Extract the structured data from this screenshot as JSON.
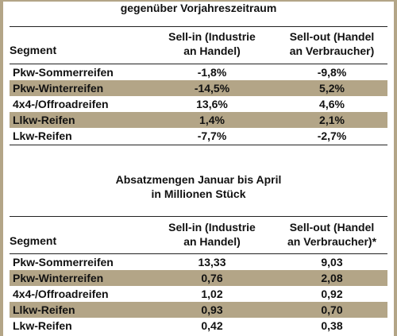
{
  "section1": {
    "title": "gegenüber Vorjahreszeitraum",
    "header": {
      "segment": "Segment",
      "col1_line1": "Sell-in (Industrie",
      "col1_line2": "an Handel)",
      "col2_line1": "Sell-out (Handel",
      "col2_line2": "an Verbraucher)"
    },
    "rows": [
      {
        "segment": "Pkw-Sommerreifen",
        "sell_in": "-1,8%",
        "sell_out": "-9,8%"
      },
      {
        "segment": "Pkw-Winterreifen",
        "sell_in": "-14,5%",
        "sell_out": "5,2%"
      },
      {
        "segment": "4x4-/Offroadreifen",
        "sell_in": "13,6%",
        "sell_out": "4,6%"
      },
      {
        "segment": "Llkw-Reifen",
        "sell_in": "1,4%",
        "sell_out": "2,1%"
      },
      {
        "segment": "Lkw-Reifen",
        "sell_in": "-7,7%",
        "sell_out": "-2,7%"
      }
    ]
  },
  "section2": {
    "title_line1": "Absatzmengen Januar bis April",
    "title_line2": "in Millionen Stück",
    "header": {
      "segment": "Segment",
      "col1_line1": "Sell-in (Industrie",
      "col1_line2": "an Handel)",
      "col2_line1": "Sell-out (Handel",
      "col2_line2": "an Verbraucher)*"
    },
    "rows": [
      {
        "segment": "Pkw-Sommerreifen",
        "sell_in": "13,33",
        "sell_out": "9,03"
      },
      {
        "segment": "Pkw-Winterreifen",
        "sell_in": "0,76",
        "sell_out": "2,08"
      },
      {
        "segment": "4x4-/Offroadreifen",
        "sell_in": "1,02",
        "sell_out": "0,92"
      },
      {
        "segment": "Llkw-Reifen",
        "sell_in": "0,93",
        "sell_out": "0,70"
      },
      {
        "segment": "Lkw-Reifen",
        "sell_in": "0,42",
        "sell_out": "0,38"
      }
    ]
  },
  "colors": {
    "accent": "#b3a587",
    "text": "#111111"
  }
}
